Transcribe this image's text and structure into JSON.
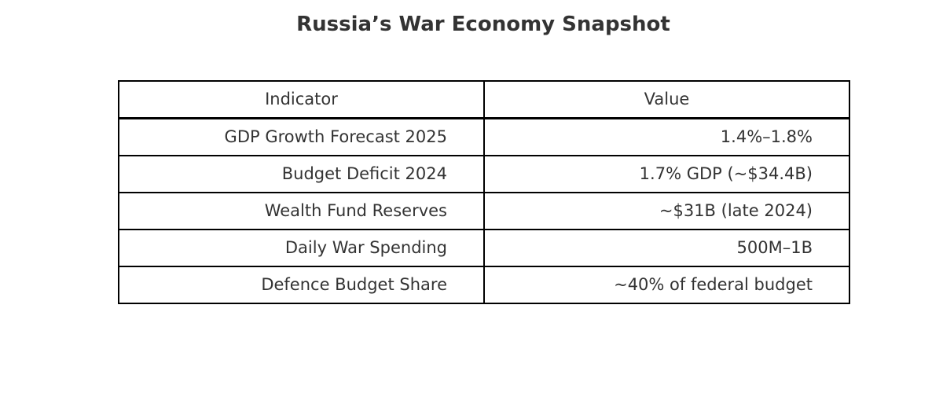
{
  "chart_data": {
    "type": "table",
    "title": "Russia’s War Economy Snapshot",
    "columns": [
      "Indicator",
      "Value"
    ],
    "rows": [
      [
        "GDP Growth Forecast 2025",
        "1.4%–1.8%"
      ],
      [
        "Budget Deficit 2024",
        "1.7% GDP (~$34.4B)"
      ],
      [
        "Wealth Fund Reserves",
        "~$31B (late 2024)"
      ],
      [
        "Daily War Spending",
        "500M–1B"
      ],
      [
        "Defence Budget Share",
        "~40% of federal budget"
      ]
    ]
  }
}
